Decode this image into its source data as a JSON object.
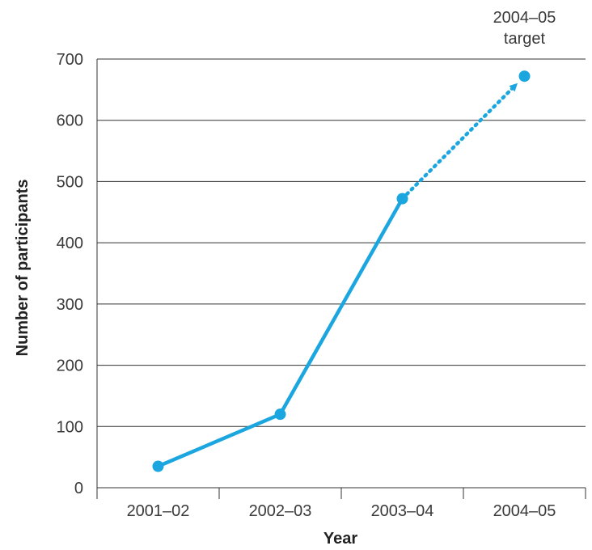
{
  "chart_data": {
    "type": "line",
    "xlabel": "Year",
    "ylabel": "Number of participants",
    "categories": [
      "2001–02",
      "2002–03",
      "2003–04",
      "2004–05"
    ],
    "ylim": [
      0,
      700
    ],
    "yticks": [
      0,
      100,
      200,
      300,
      400,
      500,
      600,
      700
    ],
    "grid": true,
    "series": [
      {
        "values": [
          35,
          120,
          472,
          null
        ],
        "style": "solid"
      },
      {
        "values": [
          null,
          null,
          472,
          672
        ],
        "style": "dotted-arrow"
      }
    ],
    "annotations": [
      {
        "text_lines": [
          "2004–05",
          "target"
        ],
        "category": "2004–05",
        "value": 672
      }
    ],
    "colors": {
      "series": "#1ba6e0",
      "grid": "#333333",
      "axis": "#333333"
    }
  }
}
